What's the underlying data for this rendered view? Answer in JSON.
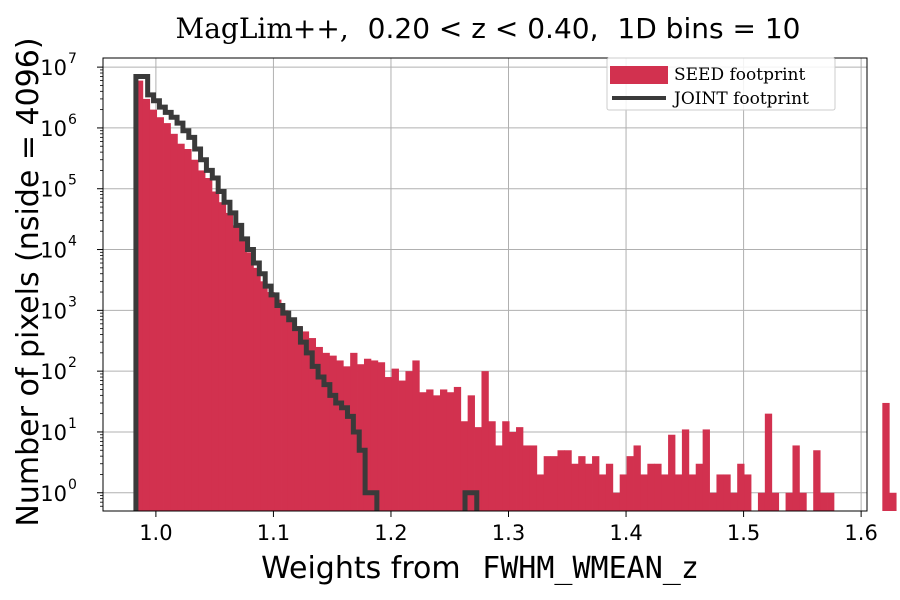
{
  "colors": {
    "seed_fill": "#d2314f",
    "joint_line": "#3a3a3a",
    "grid": "#b0b0b0"
  },
  "chart_data": {
    "type": "histogram",
    "title": {
      "survey": "MagLim++,",
      "range": "0.20 < z < 0.40,",
      "bins": "1D bins = 10"
    },
    "xlabel": {
      "prefix": "Weights from",
      "code": "FWHM_WMEAN_z"
    },
    "ylabel": "Number of pixels (nside = 4096)",
    "yscale": "log",
    "xlim": [
      0.955,
      1.605
    ],
    "ylim_log10": [
      -0.3,
      7.15
    ],
    "x_ticks": [
      {
        "value": 1.0,
        "label": "1.0"
      },
      {
        "value": 1.1,
        "label": "1.1"
      },
      {
        "value": 1.2,
        "label": "1.2"
      },
      {
        "value": 1.3,
        "label": "1.3"
      },
      {
        "value": 1.4,
        "label": "1.4"
      },
      {
        "value": 1.5,
        "label": "1.5"
      },
      {
        "value": 1.6,
        "label": "1.6"
      }
    ],
    "y_ticks": [
      {
        "exp": 0,
        "base": "10",
        "sup": "0"
      },
      {
        "exp": 1,
        "base": "10",
        "sup": "1"
      },
      {
        "exp": 2,
        "base": "10",
        "sup": "2"
      },
      {
        "exp": 3,
        "base": "10",
        "sup": "3"
      },
      {
        "exp": 4,
        "base": "10",
        "sup": "4"
      },
      {
        "exp": 5,
        "base": "10",
        "sup": "5"
      },
      {
        "exp": 6,
        "base": "10",
        "sup": "6"
      },
      {
        "exp": 7,
        "base": "10",
        "sup": "7"
      }
    ],
    "grid": true,
    "legend_position": "top-right",
    "legend": [
      {
        "key": "seed",
        "label": "SEED footprint"
      },
      {
        "key": "joint",
        "label": "JOINT footprint"
      }
    ],
    "seed_bins": {
      "start": 0.983,
      "width": 0.00588,
      "counts": [
        6000000,
        3000000,
        2000000,
        1500000,
        1200000,
        800000,
        550000,
        450000,
        300000,
        200000,
        150000,
        90000,
        60000,
        40000,
        25000,
        15000,
        9000,
        5000,
        3000,
        2000,
        1500,
        1000,
        700,
        550,
        450,
        350,
        250,
        200,
        180,
        150,
        120,
        200,
        130,
        160,
        150,
        140,
        80,
        110,
        70,
        100,
        150,
        45,
        50,
        40,
        50,
        45,
        55,
        15,
        40,
        12,
        100,
        15,
        6,
        15,
        10,
        12,
        6,
        6,
        2,
        4,
        4,
        5,
        5,
        3,
        4,
        3,
        4,
        2,
        3,
        1,
        2,
        4,
        6,
        2,
        3,
        3,
        2,
        9,
        2,
        11,
        2,
        3,
        11,
        1,
        2,
        2,
        1,
        3,
        2,
        0,
        1,
        20,
        1,
        0,
        1,
        6,
        1,
        0,
        5,
        1,
        1,
        0,
        0,
        0,
        0,
        0,
        0,
        0,
        30,
        1
      ]
    },
    "joint_steps": {
      "start": 0.983,
      "width": 0.005,
      "counts": [
        7000000,
        7000000,
        3500000,
        2800000,
        2200000,
        1800000,
        1500000,
        1200000,
        900000,
        700000,
        450000,
        300000,
        200000,
        150000,
        90000,
        60000,
        40000,
        25000,
        15000,
        10000,
        6000,
        4000,
        2500,
        1800,
        1200,
        900,
        700,
        500,
        300,
        200,
        120,
        80,
        60,
        40,
        30,
        25,
        18,
        10,
        5,
        1,
        1,
        0,
        0,
        0,
        0,
        0,
        0,
        0,
        0,
        0,
        0,
        0,
        0,
        0,
        0,
        0,
        1,
        1,
        0,
        0
      ]
    }
  }
}
